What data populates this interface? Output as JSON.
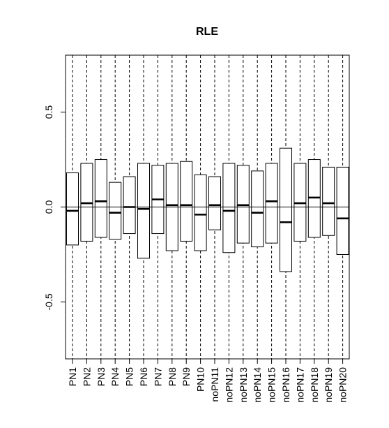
{
  "chart_data": {
    "type": "box",
    "title": "RLE",
    "xlabel": "",
    "ylabel": "",
    "ylim": [
      -0.8,
      0.8
    ],
    "yticks": [
      -0.5,
      0.0,
      0.5
    ],
    "ytick_labels": [
      "-0.5",
      "0.0",
      "0.5"
    ],
    "reference_line": 0,
    "grid": false,
    "categories": [
      "PN1",
      "PN2",
      "PN3",
      "PN4",
      "PN5",
      "PN6",
      "PN7",
      "PN8",
      "PN9",
      "PN10",
      "noPN11",
      "noPN12",
      "noPN13",
      "noPN14",
      "noPN15",
      "noPN16",
      "noPN17",
      "noPN18",
      "noPN19",
      "noPN20"
    ],
    "boxes": [
      {
        "q1": -0.2,
        "median": -0.02,
        "q3": 0.18
      },
      {
        "q1": -0.18,
        "median": 0.02,
        "q3": 0.23
      },
      {
        "q1": -0.16,
        "median": 0.03,
        "q3": 0.25
      },
      {
        "q1": -0.17,
        "median": -0.03,
        "q3": 0.13
      },
      {
        "q1": -0.14,
        "median": 0.0,
        "q3": 0.16
      },
      {
        "q1": -0.27,
        "median": -0.01,
        "q3": 0.23
      },
      {
        "q1": -0.14,
        "median": 0.04,
        "q3": 0.22
      },
      {
        "q1": -0.23,
        "median": 0.01,
        "q3": 0.23
      },
      {
        "q1": -0.18,
        "median": 0.01,
        "q3": 0.24
      },
      {
        "q1": -0.23,
        "median": -0.04,
        "q3": 0.17
      },
      {
        "q1": -0.12,
        "median": 0.01,
        "q3": 0.16
      },
      {
        "q1": -0.24,
        "median": -0.02,
        "q3": 0.23
      },
      {
        "q1": -0.19,
        "median": 0.01,
        "q3": 0.22
      },
      {
        "q1": -0.21,
        "median": -0.03,
        "q3": 0.19
      },
      {
        "q1": -0.19,
        "median": 0.03,
        "q3": 0.23
      },
      {
        "q1": -0.34,
        "median": -0.08,
        "q3": 0.31
      },
      {
        "q1": -0.18,
        "median": 0.02,
        "q3": 0.23
      },
      {
        "q1": -0.16,
        "median": 0.05,
        "q3": 0.25
      },
      {
        "q1": -0.15,
        "median": 0.02,
        "q3": 0.21
      },
      {
        "q1": -0.25,
        "median": -0.06,
        "q3": 0.21
      }
    ],
    "colors": {
      "box_stroke": "#000000",
      "median": "#000000",
      "whisker": "#000000",
      "background": "#ffffff"
    }
  }
}
